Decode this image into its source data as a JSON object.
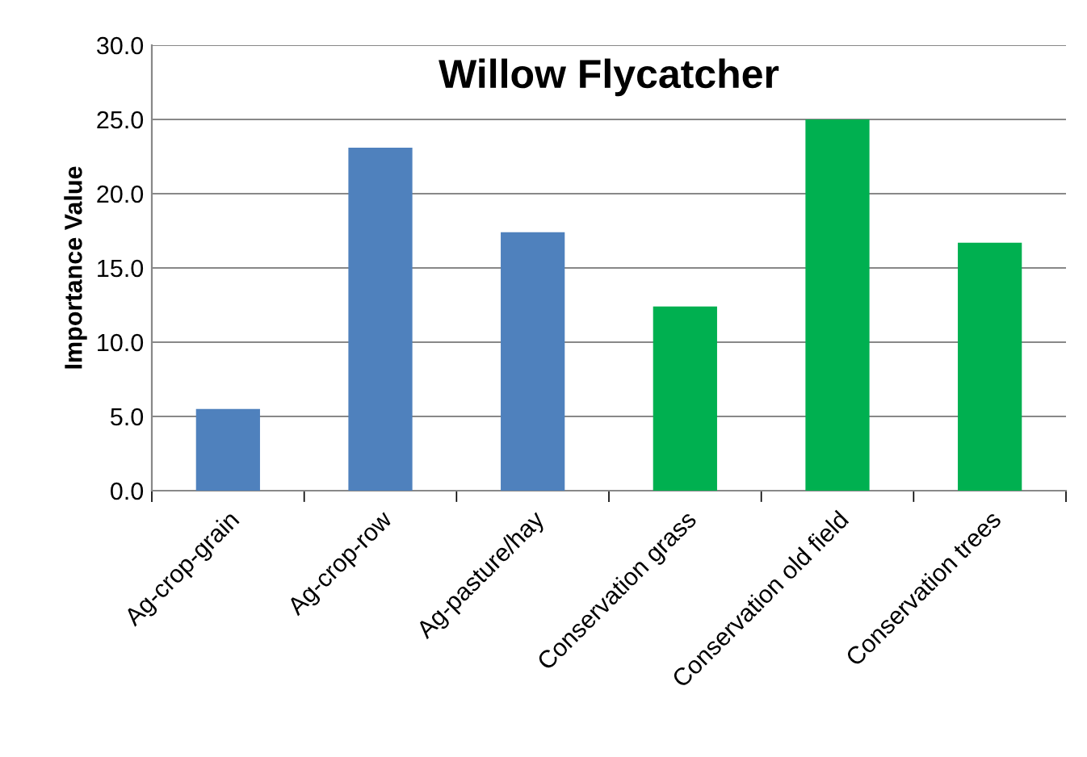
{
  "chart_data": {
    "type": "bar",
    "title": "Willow Flycatcher",
    "ylabel": "Importance Value",
    "categories": [
      "Ag-crop-grain",
      "Ag-crop-row",
      "Ag-pasture/hay",
      "Conservation grass",
      "Conservation old field",
      "Conservation trees"
    ],
    "values": [
      5.5,
      23.1,
      17.4,
      12.4,
      25.0,
      16.7
    ],
    "colors": [
      "#4f81bd",
      "#4f81bd",
      "#4f81bd",
      "#00b050",
      "#00b050",
      "#00b050"
    ],
    "ylim": [
      0,
      30
    ],
    "yticks": [
      {
        "value": 0,
        "label": "0.0"
      },
      {
        "value": 5,
        "label": "5.0"
      },
      {
        "value": 10,
        "label": "10.0"
      },
      {
        "value": 15,
        "label": "15.0"
      },
      {
        "value": 20,
        "label": "20.0"
      },
      {
        "value": 25,
        "label": "25.0"
      },
      {
        "value": 30,
        "label": "30.0"
      }
    ],
    "grid": "y",
    "legend": false
  }
}
